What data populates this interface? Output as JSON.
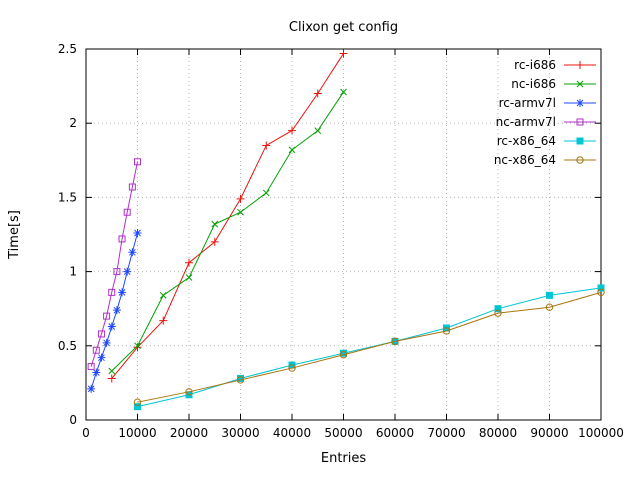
{
  "page": {
    "title": "Clixon get config"
  },
  "chart_data": {
    "type": "line",
    "title": "Clixon get config",
    "xlabel": "Entries",
    "ylabel": "Time[s]",
    "xlim": [
      0,
      100000
    ],
    "ylim": [
      0,
      2.5
    ],
    "grid": true,
    "legend_position": "top-right",
    "xticks": {
      "values": [
        0,
        10000,
        20000,
        30000,
        40000,
        50000,
        60000,
        70000,
        80000,
        90000,
        100000
      ],
      "labels": [
        "0",
        "10000",
        "20000",
        "30000",
        "40000",
        "50000",
        "60000",
        "70000",
        "80000",
        "90000",
        "100000"
      ]
    },
    "yticks": {
      "values": [
        0,
        0.5,
        1,
        1.5,
        2,
        2.5
      ],
      "labels": [
        "0",
        "0.5",
        "1",
        "1.5",
        "2",
        "2.5"
      ]
    },
    "series": [
      {
        "name": "rc-i686",
        "color": "#e8140c",
        "marker": "plus",
        "x": [
          5000,
          10000,
          15000,
          20000,
          25000,
          30000,
          35000,
          40000,
          45000,
          50000
        ],
        "y": [
          0.28,
          0.49,
          0.67,
          1.06,
          1.2,
          1.49,
          1.85,
          1.95,
          2.2,
          2.47
        ]
      },
      {
        "name": "nc-i686",
        "color": "#00a000",
        "marker": "cross",
        "x": [
          5000,
          10000,
          15000,
          20000,
          25000,
          30000,
          35000,
          40000,
          45000,
          50000
        ],
        "y": [
          0.33,
          0.5,
          0.84,
          0.96,
          1.32,
          1.4,
          1.53,
          1.82,
          1.95,
          2.21
        ]
      },
      {
        "name": "rc-armv7l",
        "color": "#2048ff",
        "marker": "asterisk",
        "x": [
          1000,
          2000,
          3000,
          4000,
          5000,
          6000,
          7000,
          8000,
          9000,
          10000
        ],
        "y": [
          0.21,
          0.32,
          0.42,
          0.52,
          0.63,
          0.74,
          0.86,
          1.0,
          1.13,
          1.26
        ]
      },
      {
        "name": "nc-armv7l",
        "color": "#b030c8",
        "marker": "square-open",
        "x": [
          1000,
          2000,
          3000,
          4000,
          5000,
          6000,
          7000,
          8000,
          9000,
          10000
        ],
        "y": [
          0.36,
          0.47,
          0.58,
          0.7,
          0.86,
          1.0,
          1.22,
          1.4,
          1.57,
          1.74
        ]
      },
      {
        "name": "rc-x86_64",
        "color": "#00c5d4",
        "marker": "square-filled",
        "x": [
          10000,
          20000,
          30000,
          40000,
          50000,
          60000,
          70000,
          80000,
          90000,
          100000
        ],
        "y": [
          0.09,
          0.17,
          0.28,
          0.37,
          0.45,
          0.53,
          0.62,
          0.75,
          0.84,
          0.89
        ]
      },
      {
        "name": "nc-x86_64",
        "color": "#a9740f",
        "marker": "circle-open",
        "x": [
          10000,
          20000,
          30000,
          40000,
          50000,
          60000,
          70000,
          80000,
          90000,
          100000
        ],
        "y": [
          0.12,
          0.19,
          0.27,
          0.35,
          0.44,
          0.53,
          0.6,
          0.72,
          0.76,
          0.86
        ]
      }
    ],
    "colors": {
      "background": "#ffffff",
      "border": "#000000",
      "grid": "#b8b8b8"
    }
  }
}
